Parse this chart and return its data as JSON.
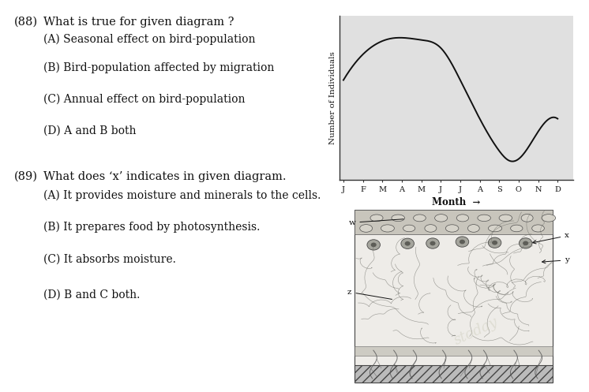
{
  "question_88_num": "(88)",
  "question_88_text": "What is true for given diagram ?",
  "q88_options": [
    "(A) Seasonal effect on bird-population",
    "(B) Bird-population affected by migration",
    "(C) Annual effect on bird-population",
    "(D) A and B both"
  ],
  "question_89_num": "(89)",
  "question_89_text": "What does ‘x’ indicates in given diagram.",
  "q89_options": [
    "(A) It provides moisture and minerals to the cells.",
    "(B) It prepares food by photosynthesis.",
    "(C) It absorbs moisture.",
    "(D) B and C both."
  ],
  "graph_months": [
    "J",
    "F",
    "M",
    "A",
    "M",
    "J",
    "J",
    "A",
    "S",
    "O",
    "N",
    "D"
  ],
  "graph_xlabel": "Month",
  "graph_ylabel": "Number of Individuals",
  "graph_bg": "#e0e0e0",
  "graph_line_color": "#111111",
  "text_color": "#111111",
  "bg_color": "#ffffff",
  "font_size_question": 10.5,
  "font_size_option": 10.0
}
